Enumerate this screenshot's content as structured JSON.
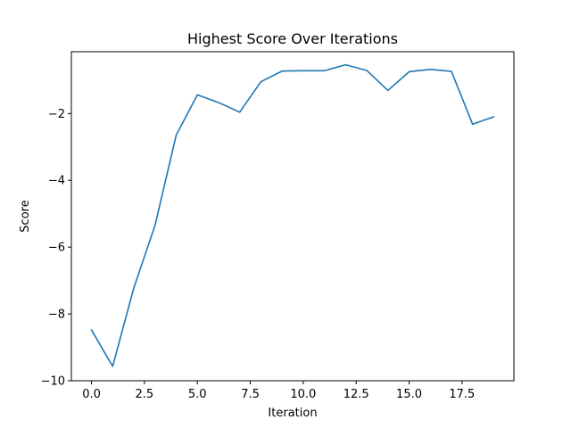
{
  "chart_data": {
    "type": "line",
    "title": "Highest Score Over Iterations",
    "xlabel": "Iteration",
    "ylabel": "Score",
    "xlim": [
      -0.95,
      19.95
    ],
    "ylim": [
      -10,
      -0.15
    ],
    "xticks": [
      0.0,
      2.5,
      5.0,
      7.5,
      10.0,
      12.5,
      15.0,
      17.5
    ],
    "xtick_labels": [
      "0.0",
      "2.5",
      "5.0",
      "7.5",
      "10.0",
      "12.5",
      "15.0",
      "17.5"
    ],
    "yticks": [
      -10,
      -8,
      -6,
      -4,
      -2
    ],
    "ytick_labels": [
      "−10",
      "−8",
      "−6",
      "−4",
      "−2"
    ],
    "grid": false,
    "series": [
      {
        "color": "#1f77b4",
        "x": [
          0,
          1,
          2,
          3,
          4,
          5,
          6,
          7,
          8,
          9,
          10,
          11,
          12,
          13,
          14,
          15,
          16,
          17,
          18,
          19
        ],
        "values": [
          -8.48,
          -9.57,
          -7.22,
          -5.35,
          -2.65,
          -1.44,
          -1.67,
          -1.96,
          -1.05,
          -0.73,
          -0.72,
          -0.72,
          -0.54,
          -0.71,
          -1.31,
          -0.75,
          -0.68,
          -0.74,
          -2.32,
          -2.1
        ]
      }
    ]
  }
}
